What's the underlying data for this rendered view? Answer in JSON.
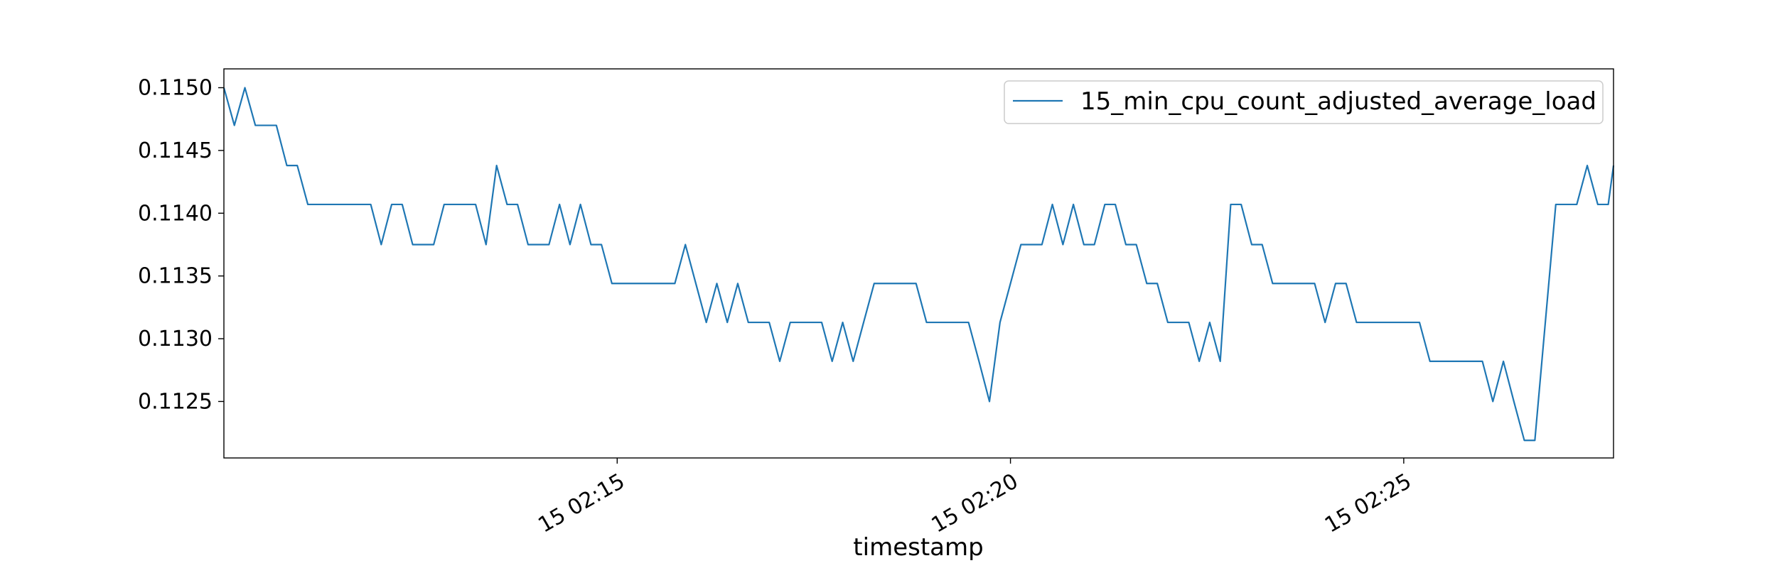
{
  "chart_data": {
    "type": "line",
    "title": "",
    "xlabel": "timestamp",
    "ylabel": "",
    "x_tick_labels": [
      "15 02:15",
      "15 02:20",
      "15 02:25"
    ],
    "x_tick_minutes": [
      15,
      20,
      25
    ],
    "xlim_minutes": [
      10.0,
      27.667
    ],
    "y_ticks": [
      0.1125,
      0.113,
      0.1135,
      0.114,
      0.1145,
      0.115
    ],
    "y_tick_labels": [
      "0.1125",
      "0.1130",
      "0.1135",
      "0.1140",
      "0.1145",
      "0.1150"
    ],
    "ylim": [
      0.11205,
      0.11515
    ],
    "grid": false,
    "legend_position": "top-right",
    "series": [
      {
        "name": "15_min_cpu_count_adjusted_average_load",
        "color": "#1f77b4",
        "x_minutes": [
          10.0,
          10.133,
          10.267,
          10.4,
          10.533,
          10.667,
          10.8,
          10.933,
          11.067,
          11.2,
          11.333,
          11.467,
          11.6,
          11.733,
          11.867,
          12.0,
          12.133,
          12.267,
          12.4,
          12.533,
          12.667,
          12.8,
          12.933,
          13.067,
          13.2,
          13.333,
          13.467,
          13.6,
          13.733,
          13.867,
          14.0,
          14.133,
          14.267,
          14.4,
          14.533,
          14.667,
          14.8,
          14.933,
          15.067,
          15.2,
          15.333,
          15.467,
          15.6,
          15.733,
          15.867,
          16.0,
          16.133,
          16.267,
          16.4,
          16.533,
          16.667,
          16.8,
          16.933,
          17.067,
          17.2,
          17.333,
          17.467,
          17.6,
          17.733,
          17.867,
          18.0,
          18.133,
          18.267,
          18.4,
          18.533,
          18.667,
          18.8,
          18.933,
          19.067,
          19.2,
          19.333,
          19.467,
          19.6,
          19.733,
          19.867,
          20.0,
          20.133,
          20.267,
          20.4,
          20.533,
          20.667,
          20.8,
          20.933,
          21.067,
          21.2,
          21.333,
          21.467,
          21.6,
          21.733,
          21.867,
          22.0,
          22.133,
          22.267,
          22.4,
          22.533,
          22.667,
          22.8,
          22.933,
          23.067,
          23.2,
          23.333,
          23.467,
          23.6,
          23.733,
          23.867,
          24.0,
          24.133,
          24.267,
          24.4,
          24.533,
          24.667,
          24.8,
          24.933,
          25.067,
          25.2,
          25.333,
          25.467,
          25.6,
          25.733,
          25.867,
          26.0,
          26.133,
          26.267,
          26.4,
          26.533,
          26.667,
          26.8,
          26.933,
          27.067,
          27.2,
          27.333,
          27.467,
          27.6,
          27.667
        ],
        "values": [
          0.115,
          0.1147,
          0.115,
          0.1147,
          0.1147,
          0.1147,
          0.11438,
          0.11438,
          0.11407,
          0.11407,
          0.11407,
          0.11407,
          0.11407,
          0.11407,
          0.11407,
          0.11375,
          0.11407,
          0.11407,
          0.11375,
          0.11375,
          0.11375,
          0.11407,
          0.11407,
          0.11407,
          0.11407,
          0.11375,
          0.11438,
          0.11407,
          0.11407,
          0.11375,
          0.11375,
          0.11375,
          0.11407,
          0.11375,
          0.11407,
          0.11375,
          0.11375,
          0.11344,
          0.11344,
          0.11344,
          0.11344,
          0.11344,
          0.11344,
          0.11344,
          0.11375,
          0.11344,
          0.11313,
          0.11344,
          0.11313,
          0.11344,
          0.11313,
          0.11313,
          0.11313,
          0.11282,
          0.11313,
          0.11313,
          0.11313,
          0.11313,
          0.11282,
          0.11313,
          0.11282,
          0.11313,
          0.11344,
          0.11344,
          0.11344,
          0.11344,
          0.11344,
          0.11313,
          0.11313,
          0.11313,
          0.11313,
          0.11313,
          0.11282,
          0.1125,
          0.11313,
          0.11344,
          0.11375,
          0.11375,
          0.11375,
          0.11407,
          0.11375,
          0.11407,
          0.11375,
          0.11375,
          0.11407,
          0.11407,
          0.11375,
          0.11375,
          0.11344,
          0.11344,
          0.11313,
          0.11313,
          0.11313,
          0.11282,
          0.11313,
          0.11282,
          0.11407,
          0.11407,
          0.11375,
          0.11375,
          0.11344,
          0.11344,
          0.11344,
          0.11344,
          0.11344,
          0.11313,
          0.11344,
          0.11344,
          0.11313,
          0.11313,
          0.11313,
          0.11313,
          0.11313,
          0.11313,
          0.11313,
          0.11282,
          0.11282,
          0.11282,
          0.11282,
          0.11282,
          0.11282,
          0.1125,
          0.11282,
          0.1125,
          0.11219,
          0.11219,
          0.11313,
          0.11407,
          0.11407,
          0.11407,
          0.11438,
          0.11407,
          0.11407,
          0.11438
        ]
      }
    ]
  }
}
